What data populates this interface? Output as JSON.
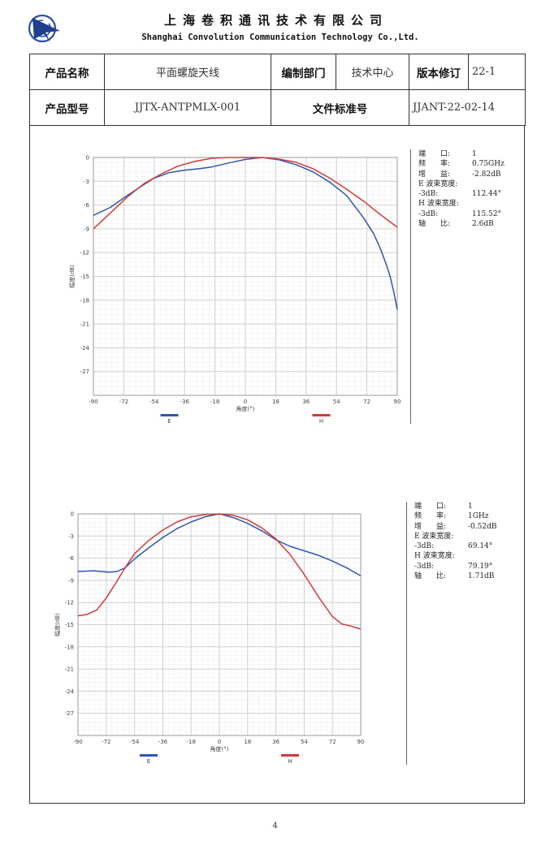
{
  "header": {
    "company_cn": "上海卷积通讯技术有限公司",
    "company_en": "Shanghai Convolution Communication Technology Co.,Ltd."
  },
  "info_table": {
    "product_name_label": "产品名称",
    "product_name_value": "平面螺旋天线",
    "dept_label": "编制部门",
    "dept_value": "技术中心",
    "rev_label": "版本修订",
    "rev_value": "22-1",
    "model_label": "产品型号",
    "model_value": "JJTX-ANTPMLX-001",
    "docno_label": "文件标准号",
    "docno_value": "JJANT-22-02-14"
  },
  "chart_data": [
    {
      "type": "line",
      "xlabel": "角度(°)",
      "ylabel": "幅度(dB)",
      "xlim": [
        -90,
        90
      ],
      "ylim": [
        -30,
        0
      ],
      "xticks": [
        -90,
        -72,
        -54,
        -36,
        -18,
        0,
        18,
        36,
        54,
        72,
        90
      ],
      "yticks": [
        0,
        -3,
        -6,
        -9,
        -12,
        -15,
        -18,
        -21,
        -24,
        -27
      ],
      "grid": true,
      "legend_position": "bottom",
      "series": [
        {
          "name": "E",
          "color": "#2f56b4",
          "x": [
            -90,
            -80,
            -70,
            -60,
            -54,
            -45,
            -36,
            -27,
            -20,
            -10,
            0,
            10,
            20,
            30,
            40,
            50,
            60,
            70,
            76,
            80,
            84,
            86,
            88,
            90
          ],
          "y": [
            -7.3,
            -6.3,
            -4.8,
            -3.4,
            -2.6,
            -1.9,
            -1.6,
            -1.4,
            -1.2,
            -0.7,
            -0.25,
            0,
            -0.3,
            -0.9,
            -1.8,
            -3.1,
            -4.8,
            -7.6,
            -9.6,
            -11.5,
            -13.8,
            -15.2,
            -17.0,
            -19.2
          ]
        },
        {
          "name": "H",
          "color": "#d23a3a",
          "x": [
            -90,
            -80,
            -70,
            -60,
            -50,
            -40,
            -30,
            -20,
            -10,
            0,
            10,
            20,
            30,
            40,
            50,
            60,
            70,
            80,
            90
          ],
          "y": [
            -9.0,
            -7.0,
            -5.0,
            -3.3,
            -2.1,
            -1.1,
            -0.5,
            -0.1,
            0,
            0,
            0,
            -0.2,
            -0.6,
            -1.4,
            -2.6,
            -4.0,
            -5.5,
            -7.2,
            -8.8
          ]
        }
      ]
    },
    {
      "type": "line",
      "xlabel": "角度(°)",
      "ylabel": "幅度(dB)",
      "xlim": [
        -90,
        90
      ],
      "ylim": [
        -30,
        0
      ],
      "xticks": [
        -90,
        -72,
        -54,
        -36,
        -18,
        0,
        18,
        36,
        54,
        72,
        90
      ],
      "yticks": [
        0,
        -3,
        -6,
        -9,
        -12,
        -15,
        -18,
        -21,
        -24,
        -27
      ],
      "grid": true,
      "legend_position": "bottom",
      "series": [
        {
          "name": "E",
          "color": "#2f56b4",
          "x": [
            -90,
            -80,
            -70,
            -65,
            -60,
            -54,
            -45,
            -36,
            -27,
            -18,
            -9,
            0,
            9,
            18,
            27,
            36,
            45,
            54,
            63,
            72,
            81,
            90
          ],
          "y": [
            -7.8,
            -7.7,
            -7.9,
            -7.8,
            -7.3,
            -6.1,
            -4.6,
            -3.2,
            -2.0,
            -1.1,
            -0.4,
            0,
            -0.5,
            -1.3,
            -2.3,
            -3.5,
            -4.4,
            -5.0,
            -5.6,
            -6.4,
            -7.3,
            -8.4
          ]
        },
        {
          "name": "H",
          "color": "#d23a3a",
          "x": [
            -90,
            -84,
            -78,
            -72,
            -66,
            -60,
            -54,
            -45,
            -36,
            -27,
            -18,
            -9,
            0,
            9,
            18,
            27,
            36,
            45,
            54,
            63,
            72,
            78,
            84,
            90
          ],
          "y": [
            -13.8,
            -13.6,
            -13.0,
            -11.4,
            -9.4,
            -7.3,
            -5.4,
            -3.6,
            -2.2,
            -1.1,
            -0.4,
            -0.1,
            0,
            -0.2,
            -0.8,
            -1.9,
            -3.4,
            -5.5,
            -8.2,
            -11.2,
            -13.9,
            -14.9,
            -15.2,
            -15.6
          ]
        }
      ]
    }
  ],
  "panels": [
    {
      "rows": [
        {
          "k": "端　　口:",
          "v": "1"
        },
        {
          "k": "频　　率:",
          "v": "0.75GHz"
        },
        {
          "k": "增　　益:",
          "v": "-2.82dB"
        },
        {
          "k": "E 波束宽度:",
          "v": ""
        },
        {
          "k": "-3dB:",
          "v": "112.44°"
        },
        {
          "k": "H 波束宽度:",
          "v": ""
        },
        {
          "k": "-3dB:",
          "v": "115.52°"
        },
        {
          "k": "轴　　比:",
          "v": "2.6dB"
        }
      ]
    },
    {
      "rows": [
        {
          "k": "端　　口:",
          "v": "1"
        },
        {
          "k": "频　　率:",
          "v": "1GHz"
        },
        {
          "k": "增　　益:",
          "v": "-0.52dB"
        },
        {
          "k": "E 波束宽度:",
          "v": ""
        },
        {
          "k": "-3dB:",
          "v": "69.14°"
        },
        {
          "k": "H 波束宽度:",
          "v": ""
        },
        {
          "k": "-3dB:",
          "v": "79.19°"
        },
        {
          "k": "轴　　比:",
          "v": "1.71dB"
        }
      ]
    }
  ],
  "page_number": "4",
  "colors": {
    "e_series": "#2f56b4",
    "h_series": "#d23a3a",
    "grid": "#cfcfcf"
  }
}
